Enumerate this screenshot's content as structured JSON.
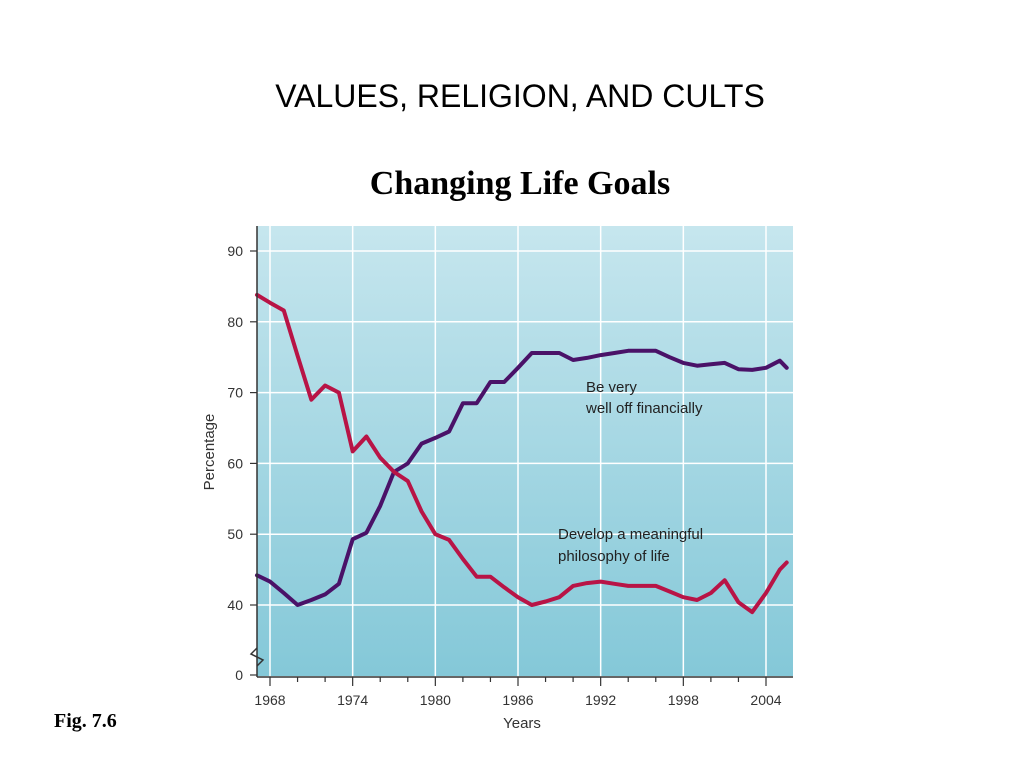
{
  "slide_title": "VALUES, RELIGION, AND CULTS",
  "figure_label": "Fig. 7.6",
  "chart_data": {
    "type": "line",
    "title": "Changing Life Goals",
    "xlabel": "Years",
    "ylabel": "Percentage",
    "xlim": [
      1967,
      2005.5
    ],
    "ylim": [
      36,
      92
    ],
    "y_axis_break": true,
    "x_ticks": [
      1968,
      1974,
      1980,
      1986,
      1992,
      1998,
      2004
    ],
    "y_ticks": [
      0,
      40,
      50,
      60,
      70,
      80,
      90
    ],
    "grid": true,
    "legend": "none",
    "background_gradient": [
      "#c6e6ee",
      "#84c8d8"
    ],
    "series": [
      {
        "name": "Be very well off financially",
        "color": "#4a1268",
        "annotation_lines": [
          "Be very",
          "well off financially"
        ],
        "x": [
          1967,
          1968,
          1969,
          1970,
          1971,
          1972,
          1973,
          1974,
          1975,
          1976,
          1977,
          1978,
          1979,
          1980,
          1981,
          1982,
          1983,
          1984,
          1985,
          1986,
          1987,
          1988,
          1989,
          1990,
          1991,
          1992,
          1993,
          1994,
          1995,
          1996,
          1997,
          1998,
          1999,
          2000,
          2001,
          2002,
          2003,
          2004,
          2005,
          2005.5
        ],
        "values": [
          44.2,
          43.3,
          41.7,
          40.0,
          40.7,
          41.5,
          43.0,
          49.3,
          50.2,
          54.0,
          58.8,
          60.0,
          62.8,
          63.6,
          64.5,
          68.5,
          68.5,
          71.5,
          71.5,
          73.5,
          75.6,
          75.6,
          75.6,
          74.6,
          74.9,
          75.3,
          75.6,
          75.9,
          75.9,
          75.9,
          75.0,
          74.2,
          73.8,
          74.0,
          74.2,
          73.3,
          73.2,
          73.5,
          74.5,
          73.5
        ]
      },
      {
        "name": "Develop a meaningful philosophy of life",
        "color": "#b81446",
        "annotation_lines": [
          "Develop a meaningful",
          "philosophy of life"
        ],
        "x": [
          1967,
          1968,
          1969,
          1970,
          1971,
          1972,
          1973,
          1974,
          1975,
          1976,
          1977,
          1978,
          1979,
          1980,
          1981,
          1982,
          1983,
          1984,
          1985,
          1986,
          1987,
          1988,
          1989,
          1990,
          1991,
          1992,
          1993,
          1994,
          1995,
          1996,
          1997,
          1998,
          1999,
          2000,
          2001,
          2002,
          2003,
          2004,
          2005,
          2005.5
        ],
        "values": [
          83.8,
          82.7,
          81.6,
          75.2,
          69.0,
          71.0,
          70.0,
          61.7,
          63.8,
          60.8,
          58.8,
          57.5,
          53.2,
          50.0,
          49.2,
          46.5,
          44.0,
          44.0,
          42.5,
          41.1,
          40.0,
          40.5,
          41.1,
          42.7,
          43.1,
          43.3,
          43.0,
          42.7,
          42.7,
          42.7,
          41.9,
          41.1,
          40.7,
          41.7,
          43.5,
          40.4,
          39.0,
          41.7,
          45.0,
          46.0
        ]
      }
    ]
  }
}
